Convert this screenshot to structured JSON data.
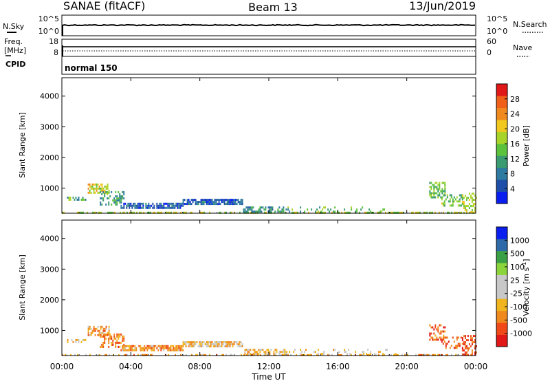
{
  "header": {
    "station": "SANAE (fitACF)",
    "beam": "Beam 13",
    "date": "13/Jun/2019"
  },
  "noise_panel": {
    "left_label": "N.Sky",
    "right_label": "N.Search",
    "left_ticks": [
      "10^5",
      "10^0"
    ],
    "right_ticks": [
      "10^5",
      "10^0"
    ]
  },
  "freq_panel": {
    "left_label_line1": "Freq.",
    "left_label_line2": "[MHz]",
    "right_label": "Nave",
    "left_ticks": [
      "18",
      "8"
    ],
    "right_ticks": [
      "60",
      "0"
    ]
  },
  "cpid_panel": {
    "label": "CPID",
    "mode": "normal 150"
  },
  "colors": {
    "power_scale": [
      "#0a1ef0",
      "#1e4ea8",
      "#2e7aa0",
      "#3a9a70",
      "#5cc23c",
      "#a8d42a",
      "#f0c81e",
      "#f08a1e",
      "#f06018",
      "#e01818"
    ],
    "velocity_scale": [
      "#e01818",
      "#f04a18",
      "#f08a1e",
      "#f0b41e",
      "#c8c8c8",
      "#c8c8c8",
      "#8cd43c",
      "#3aa046",
      "#2e6aa8",
      "#0a1ef0"
    ]
  },
  "chart_data": [
    {
      "type": "heatmap",
      "name": "Power",
      "ylabel": "Slant Range [km]",
      "xlabel": "Time UT",
      "x_range_hours": [
        0,
        24
      ],
      "ylim": [
        180,
        4600
      ],
      "x_tick_labels": [
        "00:00",
        "04:00",
        "08:00",
        "12:00",
        "16:00",
        "20:00",
        "00:00"
      ],
      "y_tick_labels": [
        "1000",
        "2000",
        "3000",
        "4000"
      ],
      "colorbar": {
        "label": "Power [dB]",
        "tick_labels": [
          "28",
          "24",
          "20",
          "16",
          "12",
          "8",
          "4"
        ]
      },
      "features": [
        {
          "t": [
            0.0,
            24.0
          ],
          "r": [
            180,
            230
          ],
          "intensity": 0.55,
          "density": 0.5
        },
        {
          "t": [
            0.3,
            1.4
          ],
          "r": [
            600,
            720
          ],
          "intensity": 0.4,
          "density": 0.5
        },
        {
          "t": [
            1.5,
            2.7
          ],
          "r": [
            850,
            1150
          ],
          "intensity": 0.6,
          "density": 0.6
        },
        {
          "t": [
            2.2,
            3.6
          ],
          "r": [
            450,
            900
          ],
          "intensity": 0.35,
          "density": 0.5
        },
        {
          "t": [
            3.4,
            7.0
          ],
          "r": [
            380,
            520
          ],
          "intensity": 0.15,
          "density": 0.8
        },
        {
          "t": [
            7.0,
            10.5
          ],
          "r": [
            450,
            650
          ],
          "intensity": 0.15,
          "density": 0.8
        },
        {
          "t": [
            10.5,
            13.0
          ],
          "r": [
            250,
            400
          ],
          "intensity": 0.3,
          "density": 0.5
        },
        {
          "t": [
            13.0,
            19.5
          ],
          "r": [
            200,
            400
          ],
          "intensity": 0.4,
          "density": 0.15
        },
        {
          "t": [
            21.3,
            22.2
          ],
          "r": [
            700,
            1200
          ],
          "intensity": 0.45,
          "density": 0.5
        },
        {
          "t": [
            22.0,
            23.2
          ],
          "r": [
            400,
            800
          ],
          "intensity": 0.45,
          "density": 0.35
        },
        {
          "t": [
            23.2,
            24.0
          ],
          "r": [
            200,
            850
          ],
          "intensity": 0.55,
          "density": 0.5
        }
      ]
    },
    {
      "type": "heatmap",
      "name": "Velocity",
      "ylabel": "Slant Range [km]",
      "xlabel": "Time UT",
      "x_range_hours": [
        0,
        24
      ],
      "ylim": [
        180,
        4600
      ],
      "x_tick_labels": [
        "00:00",
        "04:00",
        "08:00",
        "12:00",
        "16:00",
        "20:00",
        "00:00"
      ],
      "y_tick_labels": [
        "1000",
        "2000",
        "3000",
        "4000"
      ],
      "colorbar": {
        "label": "Velocity [m s^-1]",
        "tick_labels": [
          "1000",
          "500",
          "100",
          "25",
          "-25",
          "-100",
          "-500",
          "-1000"
        ]
      },
      "features": [
        {
          "t": [
            0.0,
            24.0
          ],
          "r": [
            180,
            230
          ],
          "intensity": 0.3,
          "density": 0.5
        },
        {
          "t": [
            0.3,
            1.4
          ],
          "r": [
            600,
            720
          ],
          "intensity": 0.4,
          "density": 0.5
        },
        {
          "t": [
            1.5,
            2.7
          ],
          "r": [
            850,
            1150
          ],
          "intensity": 0.25,
          "density": 0.6
        },
        {
          "t": [
            2.2,
            3.6
          ],
          "r": [
            450,
            900
          ],
          "intensity": 0.2,
          "density": 0.5
        },
        {
          "t": [
            3.4,
            7.0
          ],
          "r": [
            380,
            520
          ],
          "intensity": 0.25,
          "density": 0.8
        },
        {
          "t": [
            7.0,
            10.5
          ],
          "r": [
            450,
            650
          ],
          "intensity": 0.35,
          "density": 0.8
        },
        {
          "t": [
            10.5,
            13.0
          ],
          "r": [
            250,
            400
          ],
          "intensity": 0.3,
          "density": 0.5
        },
        {
          "t": [
            13.0,
            19.5
          ],
          "r": [
            200,
            400
          ],
          "intensity": 0.4,
          "density": 0.15
        },
        {
          "t": [
            21.3,
            22.2
          ],
          "r": [
            700,
            1200
          ],
          "intensity": 0.15,
          "density": 0.5
        },
        {
          "t": [
            22.0,
            23.2
          ],
          "r": [
            400,
            800
          ],
          "intensity": 0.15,
          "density": 0.35
        },
        {
          "t": [
            23.2,
            24.0
          ],
          "r": [
            200,
            850
          ],
          "intensity": 0.1,
          "density": 0.5
        }
      ]
    }
  ]
}
